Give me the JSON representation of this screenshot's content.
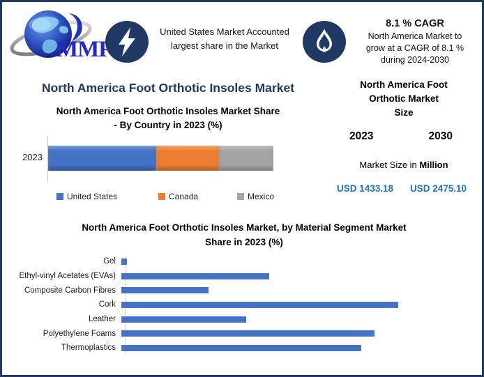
{
  "colors": {
    "border_navy": "#1F3864",
    "badge_navy": "#1F3864",
    "title_navy": "#1F3864",
    "usd_blue": "#1B75BC",
    "bar_blue": "#4472C4",
    "bar_orange": "#ED7D31",
    "bar_gray": "#A5A5A5"
  },
  "header": {
    "logo": {
      "text": "MMR",
      "icon": "globe-swoosh-logo"
    },
    "fact1": {
      "icon": "lightning-icon",
      "line1": "United States Market Accounted",
      "line2": "largest share in the Market"
    },
    "fact2": {
      "icon": "flame-icon",
      "title": "8.1 % CAGR",
      "line1": "North America Market to",
      "line2": "grow at a CAGR of 8.1 %",
      "line3": "during 2024-2030"
    }
  },
  "main": {
    "title": "North America Foot Orthotic Insoles Market"
  },
  "market_size_panel": {
    "title_line1": "North America Foot",
    "title_line2": "Orthotic Market",
    "title_line3": "Size",
    "year_left": "2023",
    "year_right": "2030",
    "unit_prefix": "Market Size in ",
    "unit_bold": "Million",
    "value_left": "USD 1433.18",
    "value_right": "USD 2475.10"
  },
  "chart_data": [
    {
      "type": "bar",
      "subtype": "stacked-horizontal",
      "title": "North America Foot Orthotic Insoles Market Share - By Country in 2023 (%)",
      "title_lines": [
        "North America Foot Orthotic Insoles Market Share",
        "- By Country in 2023 (%)"
      ],
      "categories": [
        "2023"
      ],
      "series": [
        {
          "name": "United States",
          "values": [
            48
          ],
          "color": "#4472C4"
        },
        {
          "name": "Canada",
          "values": [
            28
          ],
          "color": "#ED7D31"
        },
        {
          "name": "Mexico",
          "values": [
            24
          ],
          "color": "#A5A5A5"
        }
      ],
      "xlim": [
        0,
        100
      ],
      "legend_position": "bottom",
      "grid": false
    },
    {
      "type": "bar",
      "subtype": "horizontal",
      "title": "North America Foot Orthotic Insoles Market, by Material Segment Market Share in 2023 (%)",
      "title_lines": [
        "North America Foot Orthotic Insoles Market, by Material Segment Market",
        "Share in 2023 (%)"
      ],
      "categories": [
        "Gel",
        "Ethyl-vinyl Acetates (EVAs)",
        "Composite Carbon Fibres",
        "Cork",
        "Leather",
        "Polyethylene Foams",
        "Thermoplastics"
      ],
      "values": [
        0.5,
        13.0,
        7.7,
        24.4,
        11.0,
        22.3,
        21.1
      ],
      "bar_color": "#4472C4",
      "xlim": [
        0,
        28.5
      ],
      "ylabel": "",
      "xlabel": "",
      "grid": false
    }
  ]
}
